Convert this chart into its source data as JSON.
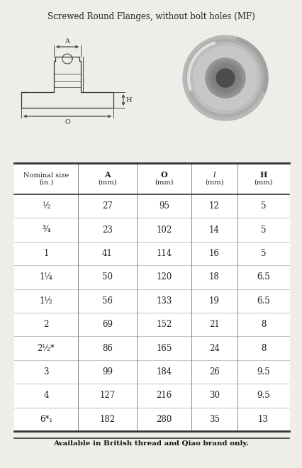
{
  "title": "Screwed Round Flanges, without bolt holes (MF)",
  "col_headers_line1": [
    "Nominal size",
    "A",
    "O",
    "l",
    "H"
  ],
  "col_headers_line2": [
    "(in.)",
    "(mm)",
    "(mm)",
    "(mm)",
    "(mm)"
  ],
  "rows": [
    [
      "27",
      "95",
      "12",
      "5"
    ],
    [
      "23",
      "102",
      "14",
      "5"
    ],
    [
      "41",
      "114",
      "16",
      "5"
    ],
    [
      "50",
      "120",
      "18",
      "6.5"
    ],
    [
      "56",
      "133",
      "19",
      "6.5"
    ],
    [
      "69",
      "152",
      "21",
      "8"
    ],
    [
      "86",
      "165",
      "24",
      "8"
    ],
    [
      "99",
      "184",
      "26",
      "9.5"
    ],
    [
      "127",
      "216",
      "30",
      "9.5"
    ],
    [
      "182",
      "280",
      "35",
      "13"
    ]
  ],
  "row_sizes_display": [
    "½",
    "¾",
    "1",
    "1¼",
    "1½",
    "2",
    "2½*",
    "3",
    "4",
    "6*₁"
  ],
  "footer": "Available in British thread and Qiao brand only.",
  "bg_color": "#eeede8",
  "line_color": "#333333",
  "text_color": "#222222"
}
